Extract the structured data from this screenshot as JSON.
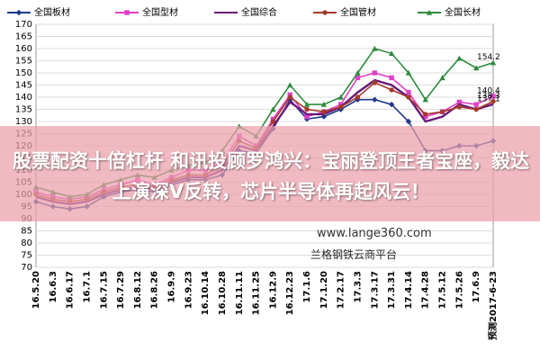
{
  "chart_data": {
    "type": "line",
    "categories": [
      "16.5.20",
      "16.6.3",
      "16.6.17",
      "16.7.1",
      "16.7.15",
      "16.7.29",
      "16.8.12",
      "16.8.26",
      "16.9.9",
      "16.9.23",
      "16.10.14",
      "16.10.28",
      "16.11.11",
      "16.11.25",
      "16.12.9",
      "16.12.23",
      "17.1.6",
      "17.1.20",
      "17.2.17",
      "17.3.3",
      "17.3.17",
      "17.3.31",
      "17.4.14",
      "17.4.28",
      "17.5.12",
      "17.5.26",
      "17.6.9",
      "预测2017-6-23"
    ],
    "series": [
      {
        "name": "全国板材",
        "color": "#1f3a8a",
        "marker": "diamond",
        "end_label": false,
        "values": [
          97,
          95,
          94,
          95,
          99,
          101,
          102,
          101,
          104,
          106,
          106,
          108,
          118,
          117,
          127,
          139,
          131,
          132,
          135,
          139,
          139,
          137,
          130,
          118,
          118,
          120,
          120,
          122
        ]
      },
      {
        "name": "全国型材",
        "color": "#e040c8",
        "marker": "square",
        "end_label": true,
        "values": [
          101,
          99,
          98,
          99,
          102,
          104,
          106,
          104,
          107,
          110,
          110,
          113,
          124,
          120,
          131,
          141,
          132,
          134,
          137,
          148,
          150,
          148,
          142,
          132,
          134,
          138,
          137,
          140.4
        ]
      },
      {
        "name": "全国综合",
        "color": "#6a1a7a",
        "marker": "none",
        "end_label": true,
        "values": [
          99,
          97,
          96,
          97,
          100,
          102,
          103,
          102,
          105,
          107,
          107,
          110,
          120,
          118,
          128,
          138,
          133,
          133,
          136,
          142,
          147,
          145,
          140,
          130,
          132,
          137,
          135,
          137.1
        ]
      },
      {
        "name": "全国管材",
        "color": "#a33a2a",
        "marker": "circle",
        "end_label": true,
        "values": [
          100,
          98,
          97,
          98,
          101,
          103,
          104,
          103,
          106,
          108,
          108,
          112,
          122,
          119,
          130,
          140,
          135,
          134,
          136,
          140,
          146,
          143,
          140,
          133,
          134,
          136,
          135,
          138.3
        ]
      },
      {
        "name": "全国长材",
        "color": "#2e8b3e",
        "marker": "triangle",
        "end_label": true,
        "values": [
          103,
          101,
          99,
          100,
          104,
          106,
          108,
          107,
          110,
          112,
          113,
          118,
          128,
          124,
          135,
          145,
          137,
          137,
          140,
          150,
          160,
          158,
          150,
          139,
          148,
          156,
          152,
          154.2
        ]
      }
    ],
    "ylim": [
      70,
      170
    ],
    "yticks": [
      70,
      75,
      80,
      85,
      90,
      95,
      100,
      105,
      110,
      115,
      120,
      125,
      130,
      135,
      140,
      145,
      150,
      155,
      160,
      165,
      170
    ],
    "grid": true,
    "legend": "top",
    "banner": "股票配资十倍杠杆 和讯投顾罗鸿兴：宝丽登顶王者宝座，毅达上演深V反转，芯片半导体再起风云！",
    "watermark_url": "www.lange360.com",
    "watermark_name": "兰格钢铁云商平台"
  }
}
